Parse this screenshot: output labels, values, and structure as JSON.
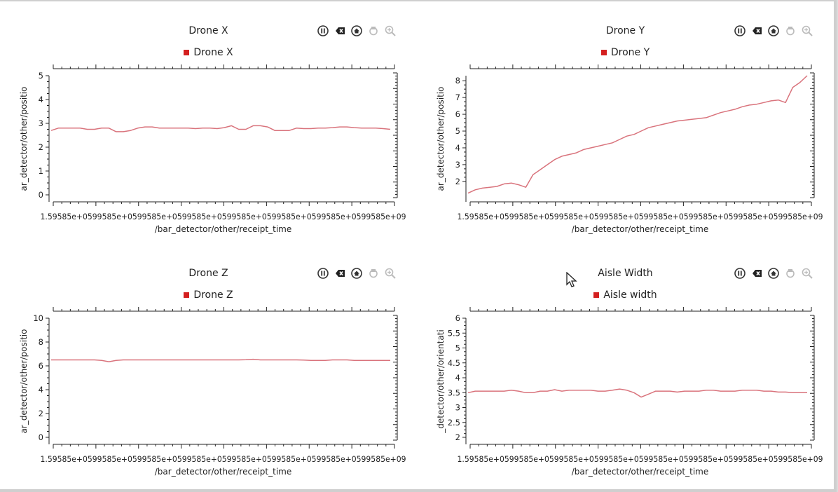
{
  "colors": {
    "line": "#d9737c",
    "legend": "#d42020",
    "axis": "#222222"
  },
  "toolbar_icons": [
    "pause-icon",
    "clear-icon",
    "home-icon",
    "pan-icon",
    "zoom-icon"
  ],
  "panels": [
    {
      "title": "Drone X",
      "legend": "Drone X",
      "ylabel": "ar_detector/other/positio",
      "xlabel": "/bar_detector/other/receipt_time",
      "xtick_text": "1.59585e+0599585e+0599585e+0599585e+0599585e+0599585e+0599585e+0599585e+09",
      "yticks": [
        "0",
        "1",
        "2",
        "3",
        "4",
        "5"
      ]
    },
    {
      "title": "Drone Y",
      "legend": "Drone Y",
      "ylabel": "ar_detector/other/positio",
      "xlabel": "/bar_detector/other/receipt_time",
      "xtick_text": "1.59585e+0599585e+0599585e+0599585e+0599585e+0599585e+0599585e+0599585e+09",
      "yticks": [
        "2",
        "3",
        "4",
        "5",
        "6",
        "7",
        "8"
      ]
    },
    {
      "title": "Drone Z",
      "legend": "Drone Z",
      "ylabel": "ar_detector/other/positio",
      "xlabel": "/bar_detector/other/receipt_time",
      "xtick_text": "1.59585e+0599585e+0599585e+0599585e+0599585e+0599585e+0599585e+0599585e+09",
      "yticks": [
        "0",
        "2",
        "4",
        "6",
        "8",
        "10"
      ]
    },
    {
      "title": "Aisle Width",
      "legend": "Aisle width",
      "ylabel": "_detector/other/orientati",
      "xlabel": "/bar_detector/other/receipt_time",
      "xtick_text": "1.59585e+0599585e+0599585e+0599585e+0599585e+0599585e+0599585e+0599585e+09",
      "yticks": [
        "2",
        "2.5",
        "3",
        "3.5",
        "4",
        "4.5",
        "5",
        "5.5",
        "6"
      ]
    }
  ],
  "chart_data": [
    {
      "type": "line",
      "title": "Drone X",
      "xlabel": "/bar_detector/other/receipt_time",
      "ylabel": "ar_detector/other/positio",
      "ylim": [
        0,
        5
      ],
      "series": [
        {
          "name": "Drone X",
          "values": [
            2.7,
            2.8,
            2.8,
            2.8,
            2.8,
            2.75,
            2.75,
            2.8,
            2.8,
            2.65,
            2.65,
            2.7,
            2.8,
            2.85,
            2.85,
            2.8,
            2.8,
            2.8,
            2.8,
            2.8,
            2.78,
            2.8,
            2.8,
            2.78,
            2.82,
            2.9,
            2.75,
            2.75,
            2.9,
            2.9,
            2.85,
            2.7,
            2.7,
            2.7,
            2.8,
            2.78,
            2.78,
            2.8,
            2.8,
            2.82,
            2.85,
            2.85,
            2.82,
            2.8,
            2.8,
            2.8,
            2.78,
            2.75
          ]
        }
      ]
    },
    {
      "type": "line",
      "title": "Drone Y",
      "xlabel": "/bar_detector/other/receipt_time",
      "ylabel": "ar_detector/other/positio",
      "ylim": [
        1.2,
        8.3
      ],
      "series": [
        {
          "name": "Drone Y",
          "values": [
            1.3,
            1.5,
            1.6,
            1.65,
            1.7,
            1.85,
            1.9,
            1.8,
            1.65,
            2.4,
            2.7,
            3.0,
            3.3,
            3.5,
            3.6,
            3.7,
            3.9,
            4.0,
            4.1,
            4.2,
            4.3,
            4.5,
            4.7,
            4.8,
            5.0,
            5.2,
            5.3,
            5.4,
            5.5,
            5.6,
            5.65,
            5.7,
            5.75,
            5.8,
            5.95,
            6.1,
            6.2,
            6.3,
            6.45,
            6.55,
            6.6,
            6.7,
            6.8,
            6.85,
            6.7,
            7.6,
            7.9,
            8.3
          ]
        }
      ]
    },
    {
      "type": "line",
      "title": "Drone Z",
      "xlabel": "/bar_detector/other/receipt_time",
      "ylabel": "ar_detector/other/positio",
      "ylim": [
        0,
        10
      ],
      "series": [
        {
          "name": "Drone Z",
          "values": [
            6.5,
            6.5,
            6.5,
            6.5,
            6.5,
            6.5,
            6.5,
            6.45,
            6.35,
            6.45,
            6.5,
            6.5,
            6.5,
            6.5,
            6.5,
            6.5,
            6.5,
            6.5,
            6.5,
            6.5,
            6.5,
            6.5,
            6.5,
            6.5,
            6.5,
            6.5,
            6.5,
            6.52,
            6.55,
            6.5,
            6.5,
            6.5,
            6.5,
            6.5,
            6.5,
            6.48,
            6.45,
            6.45,
            6.45,
            6.5,
            6.5,
            6.5,
            6.45,
            6.45,
            6.45,
            6.45,
            6.45,
            6.45
          ]
        }
      ]
    },
    {
      "type": "line",
      "title": "Aisle Width",
      "xlabel": "/bar_detector/other/receipt_time",
      "ylabel": "_detector/other/orientati",
      "ylim": [
        2,
        6
      ],
      "series": [
        {
          "name": "Aisle width",
          "values": [
            3.5,
            3.55,
            3.55,
            3.55,
            3.55,
            3.55,
            3.58,
            3.55,
            3.5,
            3.5,
            3.55,
            3.55,
            3.6,
            3.55,
            3.58,
            3.58,
            3.58,
            3.58,
            3.55,
            3.55,
            3.58,
            3.62,
            3.58,
            3.5,
            3.35,
            3.45,
            3.55,
            3.55,
            3.55,
            3.52,
            3.55,
            3.55,
            3.55,
            3.58,
            3.58,
            3.55,
            3.55,
            3.55,
            3.58,
            3.58,
            3.58,
            3.55,
            3.55,
            3.52,
            3.52,
            3.5,
            3.5,
            3.5
          ]
        }
      ]
    }
  ]
}
